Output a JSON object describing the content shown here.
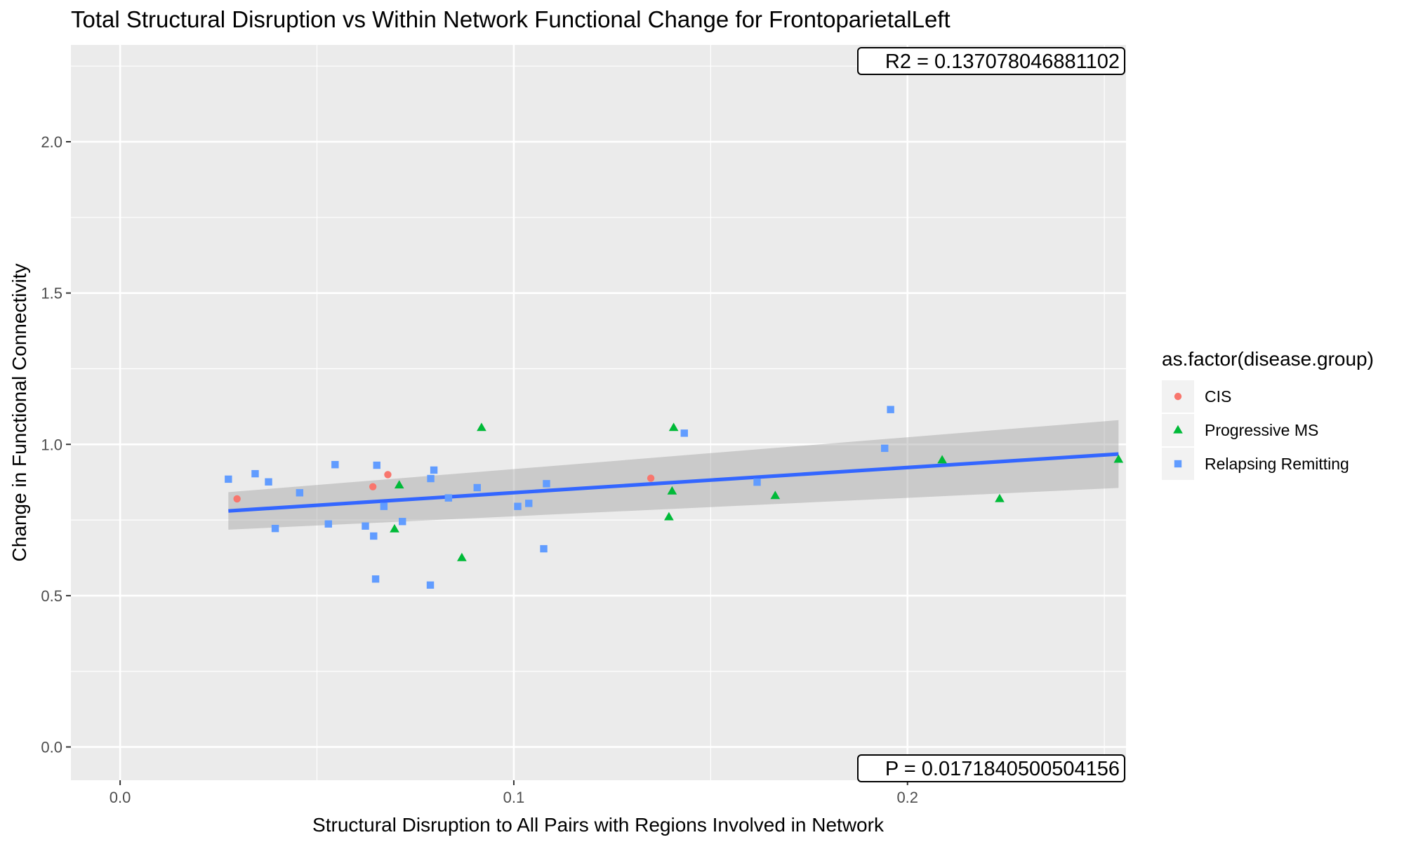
{
  "chart_data": {
    "type": "scatter",
    "title": "Total Structural Disruption vs Within Network Functional Change for FrontoparietalLeft",
    "xlabel": "Structural Disruption to All Pairs with Regions Involved in Network",
    "ylabel": "Change in Functional Connectivity",
    "xlim": [
      -0.0125,
      0.2555
    ],
    "ylim": [
      -0.11,
      2.32
    ],
    "x_ticks": [
      0.0,
      0.1,
      0.2
    ],
    "x_tick_labels": [
      "0.0",
      "0.1",
      "0.2"
    ],
    "y_ticks": [
      0.0,
      0.5,
      1.0,
      1.5,
      2.0
    ],
    "y_tick_labels": [
      "0.0",
      "0.5",
      "1.0",
      "1.5",
      "2.0"
    ],
    "grid": true,
    "legend": {
      "title": "as.factor(disease.group)",
      "position": "right"
    },
    "series": [
      {
        "name": "CIS",
        "marker": "circle",
        "color": "#F8766D",
        "points": [
          [
            0.0297,
            0.82
          ],
          [
            0.0642,
            0.86
          ],
          [
            0.068,
            0.9
          ],
          [
            0.1348,
            0.888
          ]
        ]
      },
      {
        "name": "Progressive MS",
        "marker": "triangle",
        "color": "#00BA38",
        "points": [
          [
            0.0709,
            0.865
          ],
          [
            0.0697,
            0.72
          ],
          [
            0.0868,
            0.625
          ],
          [
            0.0918,
            1.055
          ],
          [
            0.1406,
            1.055
          ],
          [
            0.1402,
            0.845
          ],
          [
            0.1394,
            0.76
          ],
          [
            0.1664,
            0.83
          ],
          [
            0.2088,
            0.948
          ],
          [
            0.2234,
            0.82
          ],
          [
            0.2536,
            0.95
          ]
        ]
      },
      {
        "name": "Relapsing Remitting",
        "marker": "square",
        "color": "#619CFF",
        "points": [
          [
            0.0275,
            0.885
          ],
          [
            0.0343,
            0.903
          ],
          [
            0.0377,
            0.876
          ],
          [
            0.0394,
            0.722
          ],
          [
            0.0456,
            0.84
          ],
          [
            0.0529,
            0.737
          ],
          [
            0.0546,
            0.933
          ],
          [
            0.0623,
            0.73
          ],
          [
            0.0644,
            0.697
          ],
          [
            0.0652,
            0.931
          ],
          [
            0.0649,
            0.555
          ],
          [
            0.067,
            0.795
          ],
          [
            0.0717,
            0.745
          ],
          [
            0.0789,
            0.887
          ],
          [
            0.0797,
            0.915
          ],
          [
            0.0788,
            0.535
          ],
          [
            0.0834,
            0.823
          ],
          [
            0.0907,
            0.857
          ],
          [
            0.101,
            0.795
          ],
          [
            0.1038,
            0.805
          ],
          [
            0.1083,
            0.87
          ],
          [
            0.1076,
            0.655
          ],
          [
            0.1433,
            1.037
          ],
          [
            0.1618,
            0.875
          ],
          [
            0.1942,
            0.987
          ],
          [
            0.1957,
            1.115
          ]
        ]
      }
    ],
    "fit": {
      "type": "linear",
      "color": "#3366FF",
      "x_range": [
        0.0275,
        0.2536
      ],
      "y_at_range": [
        0.78,
        0.968
      ],
      "ci_lower": [
        0.718,
        0.856
      ],
      "ci_upper": [
        0.842,
        1.08
      ]
    },
    "annotations": {
      "r2_text": "R2 =  0.137078046881102",
      "p_text": "P =  0.0171840500504156"
    }
  }
}
